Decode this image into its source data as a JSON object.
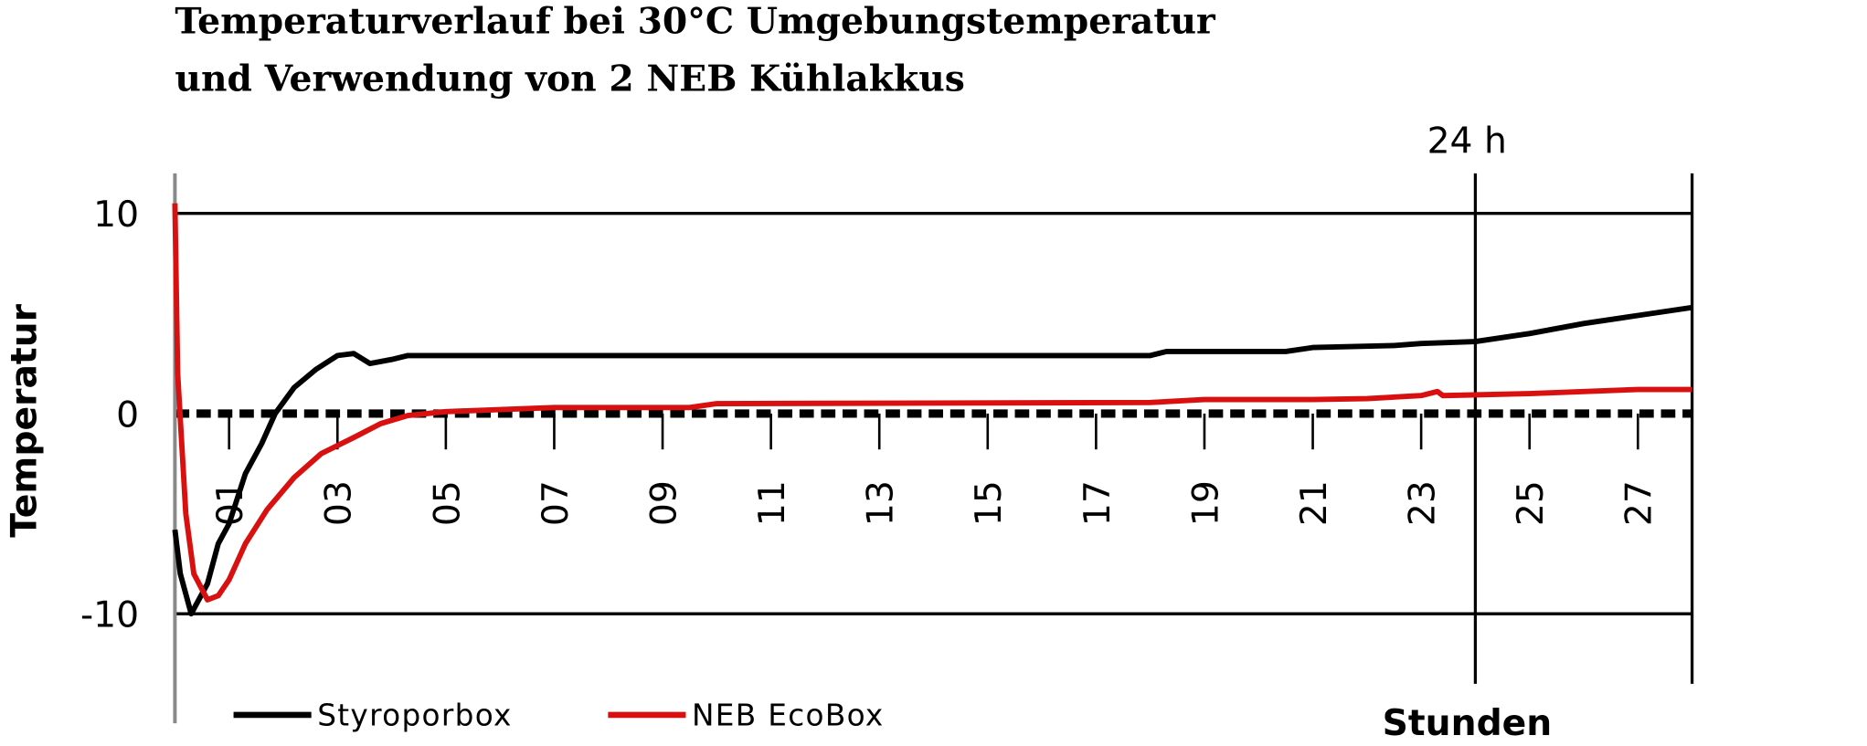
{
  "chart_data": {
    "type": "line",
    "title": [
      "Temperaturverlauf bei 30°C Umgebungstemperatur",
      "und Verwendung von 2 NEB Kühlakkus"
    ],
    "y_label": "Temperatur",
    "x_label": "Stunden",
    "annotation": {
      "text": "24 h",
      "x": 24
    },
    "xlim": [
      0,
      28
    ],
    "ylim": [
      -13.5,
      12
    ],
    "yticks": [
      -10,
      0,
      10
    ],
    "xticks": [
      {
        "value": 1,
        "label": "01"
      },
      {
        "value": 3,
        "label": "03"
      },
      {
        "value": 5,
        "label": "05"
      },
      {
        "value": 7,
        "label": "07"
      },
      {
        "value": 9,
        "label": "09"
      },
      {
        "value": 11,
        "label": "11"
      },
      {
        "value": 13,
        "label": "13"
      },
      {
        "value": 15,
        "label": "15"
      },
      {
        "value": 17,
        "label": "17"
      },
      {
        "value": 19,
        "label": "19"
      },
      {
        "value": 21,
        "label": "21"
      },
      {
        "value": 23,
        "label": "23"
      },
      {
        "value": 25,
        "label": "25"
      },
      {
        "value": 27,
        "label": "27"
      }
    ],
    "grid": true,
    "series": [
      {
        "name": "Styroporbox",
        "color": "#000000",
        "x": [
          0,
          0.1,
          0.3,
          0.6,
          0.8,
          1.0,
          1.3,
          1.6,
          1.85,
          2.2,
          2.6,
          3.0,
          3.3,
          3.6,
          4.0,
          4.3,
          18,
          18.3,
          20.5,
          21,
          22.5,
          23,
          24,
          25,
          26,
          27,
          28
        ],
        "values": [
          -5.8,
          -8,
          -10,
          -8.5,
          -6.5,
          -5.5,
          -3,
          -1.5,
          0,
          1.3,
          2.2,
          2.9,
          3.0,
          2.5,
          2.7,
          2.9,
          2.9,
          3.1,
          3.1,
          3.3,
          3.4,
          3.5,
          3.6,
          4.0,
          4.5,
          4.9,
          5.3
        ]
      },
      {
        "name": "NEB EcoBox",
        "color": "#d81010",
        "x": [
          0,
          0.05,
          0.2,
          0.35,
          0.6,
          0.8,
          1.0,
          1.3,
          1.7,
          2.2,
          2.7,
          3.3,
          3.8,
          4.3,
          5,
          6,
          7,
          9.5,
          10,
          18,
          19,
          21,
          22,
          23,
          23.3,
          23.4,
          25,
          27,
          28
        ],
        "values": [
          10.5,
          2,
          -5,
          -8,
          -9.3,
          -9.1,
          -8.3,
          -6.5,
          -4.8,
          -3.2,
          -2.0,
          -1.2,
          -0.5,
          -0.1,
          0.1,
          0.2,
          0.3,
          0.3,
          0.5,
          0.55,
          0.7,
          0.7,
          0.75,
          0.9,
          1.1,
          0.9,
          1.0,
          1.2,
          1.2
        ]
      }
    ]
  }
}
